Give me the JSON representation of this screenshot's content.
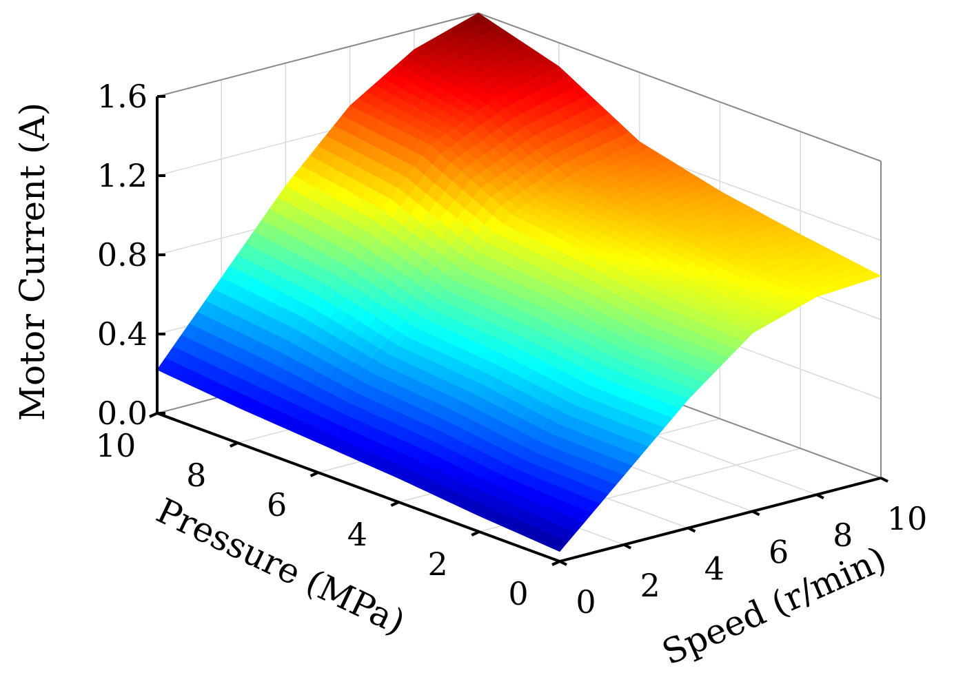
{
  "chart_data": {
    "type": "surface",
    "title": "",
    "xlabel": "Pressure (MPa)",
    "ylabel": "Speed (r/min)",
    "zlabel": "Motor Current (A)",
    "xlim": [
      0,
      10
    ],
    "ylim": [
      0,
      10
    ],
    "zlim": [
      0,
      1.6
    ],
    "x_ticks": [
      "0",
      "2",
      "4",
      "6",
      "8",
      "10"
    ],
    "y_ticks": [
      "0",
      "2",
      "4",
      "6",
      "8",
      "10"
    ],
    "z_ticks": [
      "0.0",
      "0.4",
      "0.8",
      "1.2",
      "1.6"
    ],
    "x": [
      0,
      2,
      4,
      6,
      8,
      10
    ],
    "y": [
      0,
      2,
      4,
      6,
      8,
      10
    ],
    "z": [
      [
        0.05,
        0.08,
        0.12,
        0.15,
        0.18,
        0.22
      ],
      [
        0.35,
        0.36,
        0.42,
        0.46,
        0.55,
        0.6
      ],
      [
        0.65,
        0.66,
        0.72,
        0.75,
        0.9,
        0.98
      ],
      [
        0.9,
        0.92,
        1.0,
        1.05,
        1.25,
        1.3
      ],
      [
        1.0,
        1.05,
        1.1,
        1.18,
        1.4,
        1.5
      ],
      [
        1.02,
        1.08,
        1.15,
        1.25,
        1.48,
        1.6
      ]
    ],
    "colormap": "jet",
    "grid": true
  }
}
